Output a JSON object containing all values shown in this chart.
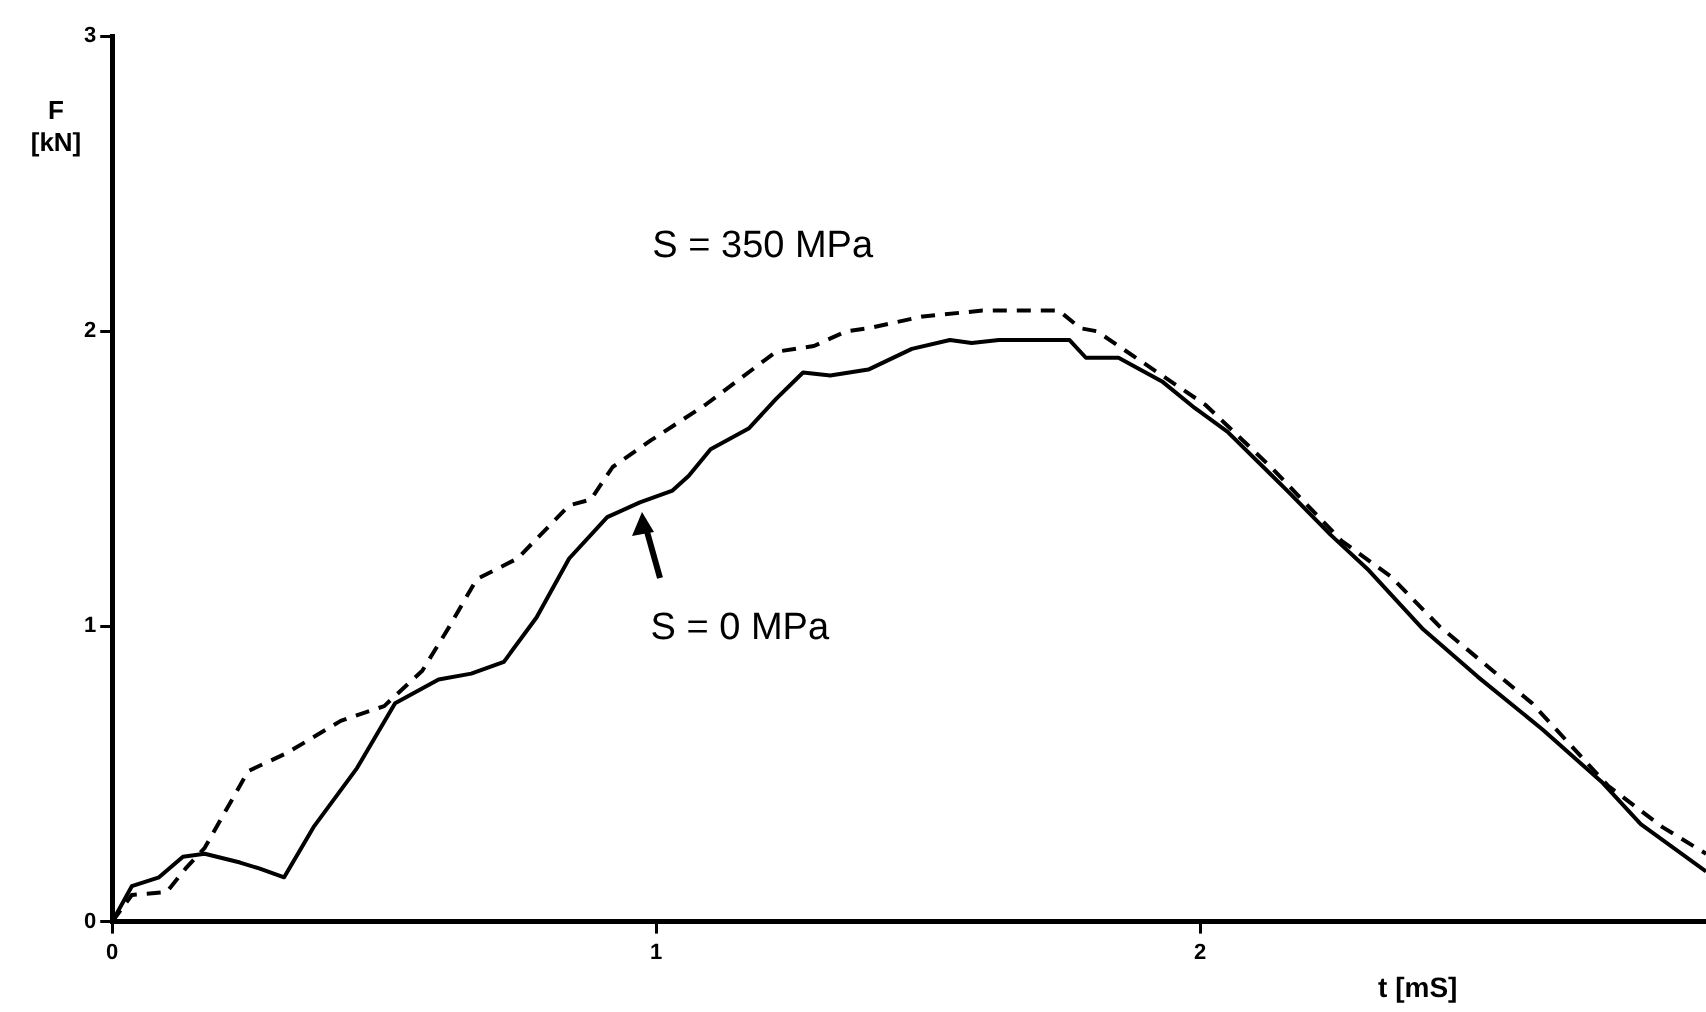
{
  "chart_data": {
    "type": "line",
    "xlabel": "t [mS]",
    "ylabel": "F [kN]",
    "xlim": [
      0,
      2.93
    ],
    "ylim": [
      0,
      3
    ],
    "xticks": [
      0,
      1,
      2
    ],
    "yticks": [
      0,
      1,
      2,
      3
    ],
    "grid": false,
    "legend": false,
    "marker": "none",
    "series": [
      {
        "color": "#000000",
        "line_style": "solid",
        "x": [
          0,
          0.036,
          0.086,
          0.13,
          0.17,
          0.235,
          0.27,
          0.316,
          0.37,
          0.45,
          0.52,
          0.6,
          0.66,
          0.72,
          0.78,
          0.84,
          0.91,
          0.97,
          1.03,
          1.06,
          1.1,
          1.17,
          1.22,
          1.27,
          1.32,
          1.39,
          1.47,
          1.54,
          1.58,
          1.63,
          1.76,
          1.79,
          1.85,
          1.93,
          1.99,
          2.05,
          2.16,
          2.24,
          2.31,
          2.41,
          2.51,
          2.63,
          2.74,
          2.81,
          2.93
        ],
        "values": [
          0,
          0.12,
          0.15,
          0.22,
          0.23,
          0.2,
          0.18,
          0.15,
          0.32,
          0.52,
          0.74,
          0.82,
          0.84,
          0.88,
          1.03,
          1.23,
          1.37,
          1.42,
          1.46,
          1.51,
          1.6,
          1.67,
          1.77,
          1.86,
          1.85,
          1.87,
          1.94,
          1.97,
          1.96,
          1.97,
          1.97,
          1.91,
          1.91,
          1.83,
          1.74,
          1.66,
          1.46,
          1.31,
          1.19,
          0.99,
          0.83,
          0.65,
          0.47,
          0.33,
          0.17
        ]
      },
      {
        "color": "#000000",
        "line_style": "dashed",
        "x": [
          0,
          0.036,
          0.1,
          0.135,
          0.17,
          0.25,
          0.32,
          0.42,
          0.5,
          0.57,
          0.62,
          0.67,
          0.745,
          0.84,
          0.88,
          0.92,
          0.99,
          1.09,
          1.22,
          1.29,
          1.35,
          1.39,
          1.49,
          1.6,
          1.74,
          1.78,
          1.81,
          1.89,
          2.01,
          2.13,
          2.26,
          2.35,
          2.44,
          2.61,
          2.75,
          2.85,
          2.93
        ],
        "values": [
          0,
          0.09,
          0.1,
          0.18,
          0.25,
          0.51,
          0.57,
          0.68,
          0.73,
          0.85,
          1.0,
          1.16,
          1.23,
          1.41,
          1.43,
          1.54,
          1.63,
          1.75,
          1.93,
          1.95,
          2.0,
          2.01,
          2.05,
          2.07,
          2.07,
          2.01,
          2.0,
          1.9,
          1.75,
          1.54,
          1.29,
          1.17,
          1.0,
          0.74,
          0.46,
          0.32,
          0.23
        ]
      }
    ],
    "annotations": [
      {
        "text": "S = 350 MPa",
        "x": 1.49,
        "y": 2.05
      },
      {
        "text": "S = 0 MPa",
        "x": 0.97,
        "y": 1.42
      }
    ]
  }
}
